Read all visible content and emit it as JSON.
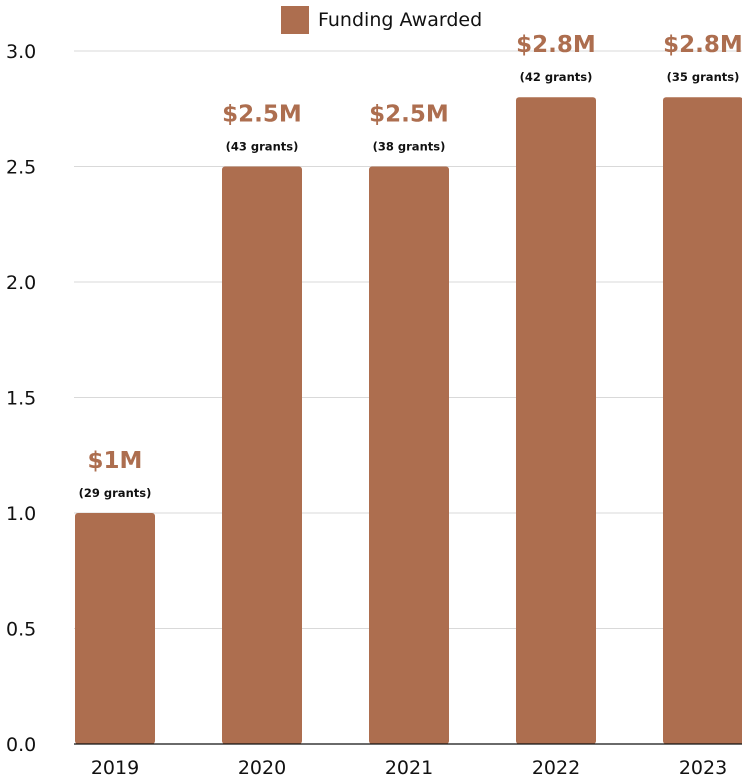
{
  "chart_data": {
    "type": "bar",
    "categories": [
      "2019",
      "2020",
      "2021",
      "2022",
      "2023"
    ],
    "series": [
      {
        "name": "Funding Awarded",
        "values": [
          1.0,
          2.5,
          2.5,
          2.8,
          2.8
        ]
      }
    ],
    "value_labels": [
      "$1M",
      "$2.5M",
      "$2.5M",
      "$2.8M",
      "$2.8M"
    ],
    "grant_labels": [
      "(29 grants)",
      "(43 grants)",
      "(38 grants)",
      "(42 grants)",
      "(35 grants)"
    ],
    "ylim": [
      0,
      3.0
    ],
    "yticks": [
      "0.0",
      "0.5",
      "1.0",
      "1.5",
      "2.0",
      "2.5",
      "3.0"
    ],
    "grid": true,
    "legend_position": "top-center",
    "colors": {
      "bar": "#ad6e4f",
      "value_label": "#ad6e4f",
      "grid": "#d9d9d9",
      "axis": "#111111"
    }
  }
}
